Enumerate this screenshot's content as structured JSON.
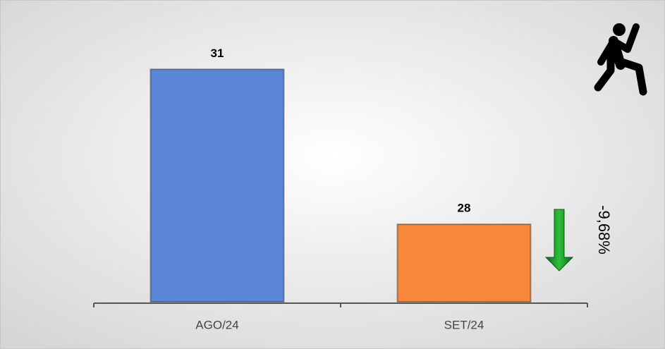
{
  "chart_data": {
    "type": "bar",
    "categories": [
      "AGO/24",
      "SET/24"
    ],
    "values": [
      31,
      28
    ],
    "colors": [
      "#5b87d6",
      "#f7873a"
    ],
    "ylim": [
      26.5,
      32
    ],
    "annotation": "-9,68%"
  }
}
